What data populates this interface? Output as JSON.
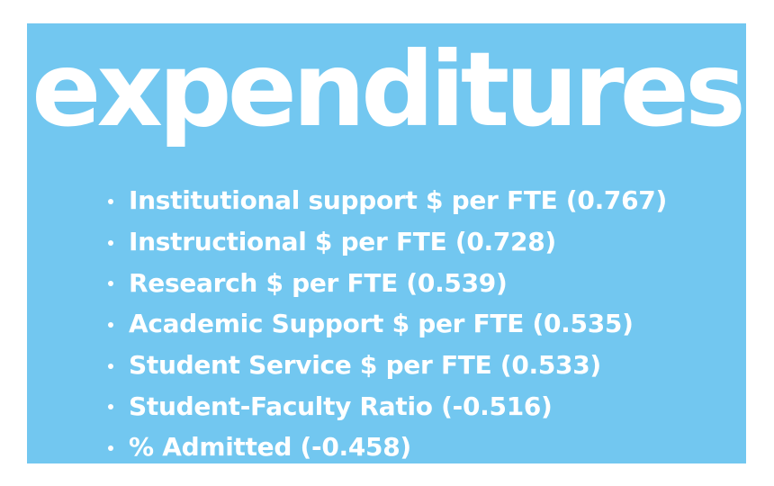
{
  "title": "expenditures",
  "bullet_items": [
    "Institutional support $ per FTE (0.767)",
    "Instructional $ per FTE (0.728)",
    "Research $ per FTE (0.539)",
    "Academic Support $ per FTE (0.535)",
    "Student Service $ per FTE (0.533)",
    "Student-Faculty Ratio (-0.516)",
    "% Admitted (-0.458)"
  ],
  "colors": {
    "panel_background": "#72c7f0",
    "text": "#ffffff",
    "page_background": "#ffffff"
  }
}
